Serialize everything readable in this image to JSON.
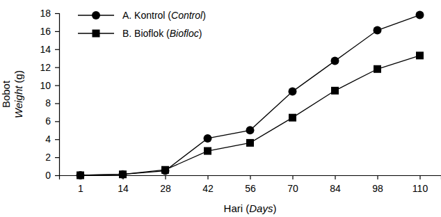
{
  "chart_data": {
    "type": "line",
    "x_label": "Hari (Days)",
    "y_label": [
      "Bobot",
      "Weight (g)"
    ],
    "categories": [
      "1",
      "14",
      "28",
      "42",
      "56",
      "70",
      "84",
      "98",
      "110"
    ],
    "series": [
      {
        "name": "A. Kontrol (Control)",
        "color": "#000000",
        "marker": "circle",
        "line_style": "solid",
        "values": [
          0,
          0.1,
          0.5,
          4.1,
          5.0,
          9.3,
          12.7,
          16.1,
          17.8
        ]
      },
      {
        "name": "B. Bioflok (Biofloc)",
        "color": "#000000",
        "marker": "square",
        "line_style": "solid",
        "values": [
          0,
          0.1,
          0.6,
          2.7,
          3.6,
          6.4,
          9.4,
          11.8,
          13.3
        ]
      }
    ],
    "ylim": [
      0,
      18
    ],
    "yticks": [
      0,
      2,
      4,
      6,
      8,
      10,
      12,
      14,
      16,
      18
    ],
    "grid": false,
    "legend": "top-left"
  }
}
